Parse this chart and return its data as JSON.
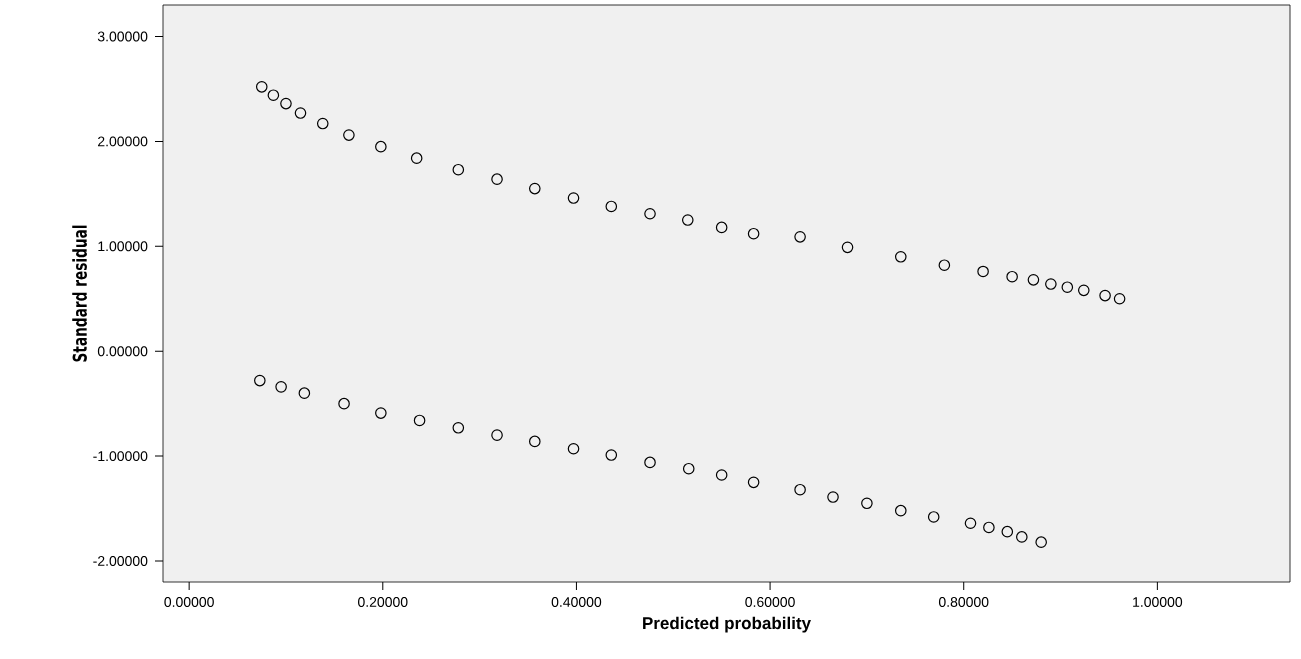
{
  "chart_data": {
    "type": "scatter",
    "xlabel": "Predicted probability",
    "ylabel": "Standard residual",
    "xlim": [
      -0.027,
      1.137
    ],
    "ylim": [
      -2.2,
      3.3
    ],
    "xticks": [
      {
        "value": 0,
        "label": "0.00000"
      },
      {
        "value": 0.2,
        "label": "0.20000"
      },
      {
        "value": 0.4,
        "label": "0.40000"
      },
      {
        "value": 0.6,
        "label": "0.60000"
      },
      {
        "value": 0.8,
        "label": "0.80000"
      },
      {
        "value": 1.0,
        "label": "1.00000"
      }
    ],
    "yticks": [
      {
        "value": -2,
        "label": "-2.00000"
      },
      {
        "value": -1,
        "label": "-1.00000"
      },
      {
        "value": 0,
        "label": "0.00000"
      },
      {
        "value": 1,
        "label": "1.00000"
      },
      {
        "value": 2,
        "label": "2.00000"
      },
      {
        "value": 3,
        "label": "3.00000"
      }
    ],
    "marker": "circle",
    "grid": false,
    "series": [
      {
        "color": "#000000",
        "x": [
          0.075,
          0.087,
          0.1,
          0.115,
          0.138,
          0.165,
          0.198,
          0.235,
          0.278,
          0.318,
          0.357,
          0.397,
          0.436,
          0.476,
          0.515,
          0.55,
          0.583,
          0.631,
          0.68,
          0.735,
          0.78,
          0.82,
          0.85,
          0.872,
          0.89,
          0.907,
          0.924,
          0.946,
          0.961
        ],
        "values": [
          2.52,
          2.44,
          2.36,
          2.27,
          2.17,
          2.06,
          1.95,
          1.84,
          1.73,
          1.64,
          1.55,
          1.46,
          1.38,
          1.31,
          1.25,
          1.18,
          1.12,
          1.09,
          0.99,
          0.9,
          0.82,
          0.76,
          0.71,
          0.68,
          0.64,
          0.61,
          0.58,
          0.53,
          0.5
        ]
      },
      {
        "color": "#000000",
        "x": [
          0.073,
          0.095,
          0.119,
          0.16,
          0.198,
          0.238,
          0.278,
          0.318,
          0.357,
          0.397,
          0.436,
          0.476,
          0.516,
          0.55,
          0.583,
          0.631,
          0.665,
          0.7,
          0.735,
          0.769,
          0.807,
          0.826,
          0.845,
          0.86,
          0.88
        ],
        "values": [
          -0.28,
          -0.34,
          -0.4,
          -0.5,
          -0.59,
          -0.66,
          -0.73,
          -0.8,
          -0.86,
          -0.93,
          -0.99,
          -1.06,
          -1.12,
          -1.18,
          -1.25,
          -1.32,
          -1.39,
          -1.45,
          -1.52,
          -1.58,
          -1.64,
          -1.68,
          -1.72,
          -1.77,
          -1.82
        ]
      }
    ]
  }
}
